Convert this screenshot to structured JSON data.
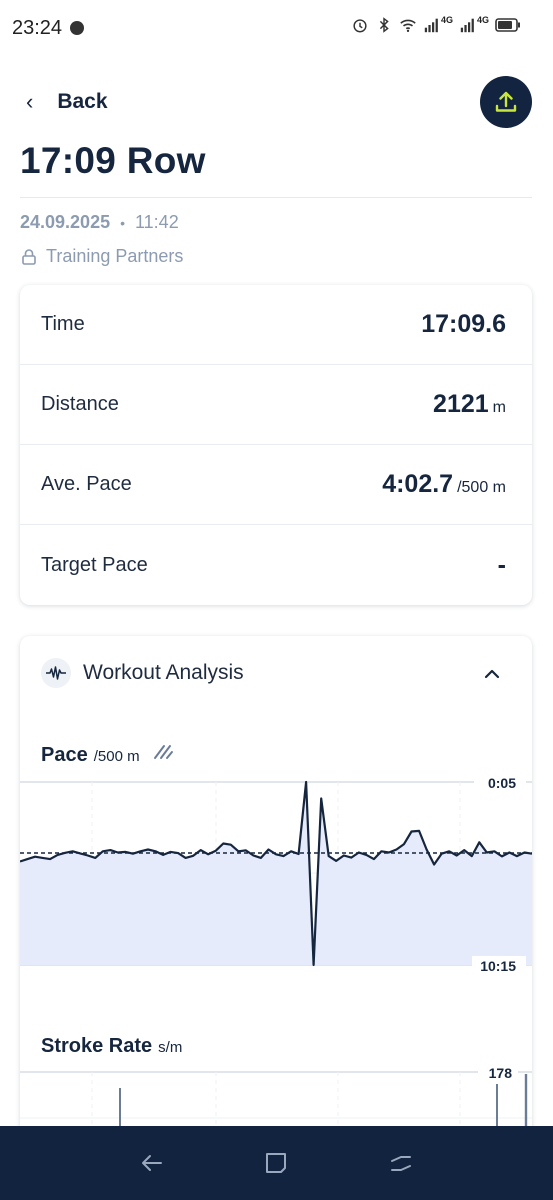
{
  "status_bar": {
    "time": "23:24",
    "network_4g_1": "4G",
    "network_4g_2": "4G"
  },
  "header": {
    "back_label": "Back"
  },
  "workout": {
    "title": "17:09 Row",
    "date": "24.09.2025",
    "time": "11:42",
    "privacy": "Training Partners"
  },
  "stats": [
    {
      "label": "Time",
      "value": "17:09.6",
      "unit": ""
    },
    {
      "label": "Distance",
      "value": "2121",
      "unit": "m"
    },
    {
      "label": "Ave. Pace",
      "value": "4:02.7",
      "unit": "/500 m"
    },
    {
      "label": "Target Pace",
      "value": "-",
      "unit": ""
    }
  ],
  "analysis": {
    "title": "Workout Analysis",
    "pace_chart": {
      "title": "Pace",
      "unit": "/500 m",
      "top_label": "0:05",
      "bottom_label": "10:15"
    },
    "stroke_chart": {
      "title": "Stroke Rate",
      "unit": "s/m",
      "top_label": "178"
    }
  },
  "chart_data": [
    {
      "type": "area",
      "title": "Pace",
      "ylabel": "/500 m",
      "y_top_label": "0:05",
      "y_bottom_label": "10:15",
      "average_line": "dashed",
      "values_sec_per_500m": [
        270,
        262,
        254,
        258,
        262,
        248,
        241,
        236,
        243,
        250,
        258,
        236,
        232,
        240,
        238,
        244,
        236,
        230,
        236,
        248,
        238,
        242,
        258,
        251,
        232,
        246,
        234,
        210,
        214,
        236,
        233,
        250,
        258,
        230,
        246,
        252,
        236,
        245,
        5,
        615,
        60,
        252,
        268,
        250,
        257,
        240,
        248,
        262,
        236,
        240,
        230,
        212,
        170,
        168,
        230,
        280,
        244,
        236,
        250,
        232,
        252,
        206,
        240,
        236,
        253,
        240,
        252,
        240,
        244
      ]
    },
    {
      "type": "bar",
      "title": "Stroke Rate",
      "ylabel": "s/m",
      "y_top_label": "178",
      "values_visible": [
        178,
        178,
        178
      ]
    }
  ],
  "colors": {
    "navy": "#12233f",
    "accent": "#c8e63c",
    "muted": "#8c9bb0",
    "fill": "#e6ebfb",
    "line": "#16263e"
  }
}
